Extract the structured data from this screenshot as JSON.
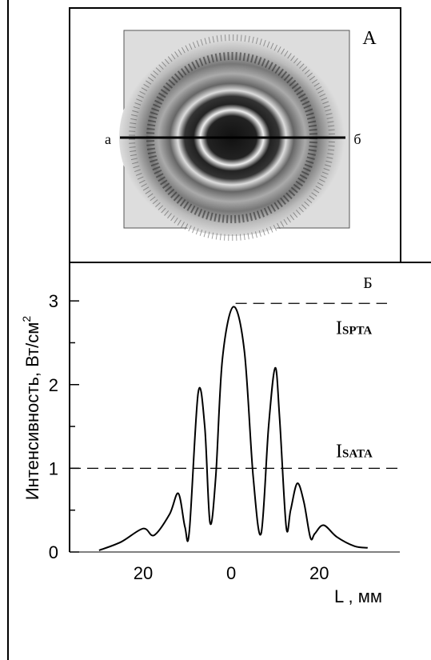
{
  "panel_a": {
    "letter": "А",
    "left_label": "а",
    "right_label": "б"
  },
  "chart_data": {
    "type": "line",
    "panel_letter": "Б",
    "y_label": "Интенсивность, Вт/см",
    "y_label_sup": "2",
    "x_label": "L , мм",
    "x": [
      -30,
      -25,
      -20,
      -17.5,
      -14,
      -12,
      -10.5,
      -9.5,
      -7.5,
      -6,
      -4.8,
      -3.5,
      -2,
      0.5,
      3,
      5,
      6.8,
      8.5,
      10,
      11,
      12.5,
      13.5,
      15,
      16.5,
      18,
      19,
      21,
      24,
      28,
      31
    ],
    "series": [
      {
        "color": "#000000",
        "values": [
          0.02,
          0.12,
          0.28,
          0.2,
          0.45,
          0.7,
          0.3,
          0.25,
          1.9,
          1.5,
          0.35,
          0.9,
          2.3,
          2.93,
          2.4,
          0.9,
          0.22,
          1.5,
          2.2,
          1.6,
          0.3,
          0.5,
          0.82,
          0.6,
          0.17,
          0.22,
          0.32,
          0.18,
          0.07,
          0.05
        ]
      }
    ],
    "xlim": [
      -36.7,
      38.3
    ],
    "ylim": [
      0,
      3.46
    ],
    "xticks": [
      {
        "value": -20,
        "label": "20"
      },
      0,
      20
    ],
    "yticks": [
      0,
      1,
      2,
      3
    ],
    "yticks_minor": [
      0.5,
      1.5,
      2.5
    ],
    "reference_lines": [
      {
        "label": "I",
        "label_sub": "SPTA",
        "value": 2.97,
        "x_start": 1
      },
      {
        "label": "I",
        "label_sub": "SATA",
        "value": 1,
        "x_start": -36.7
      }
    ]
  }
}
